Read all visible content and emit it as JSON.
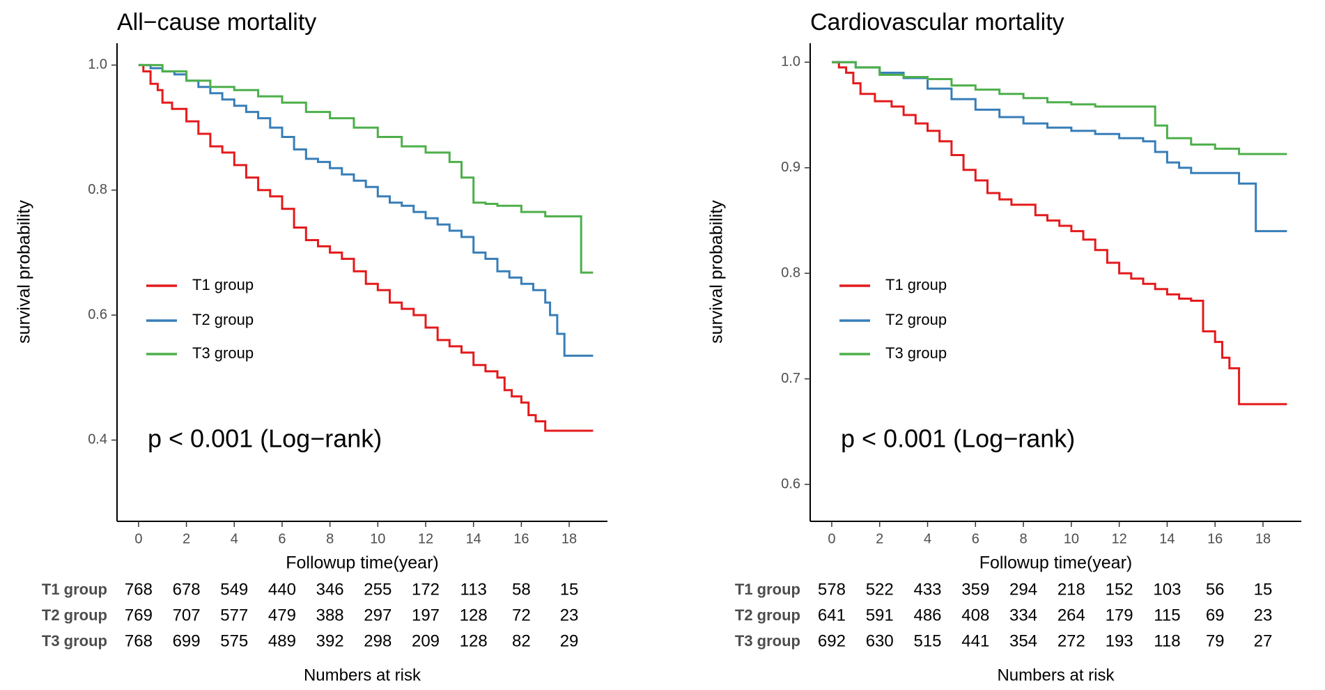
{
  "colors": {
    "T1": "#e41a1c",
    "T2": "#377eb8",
    "T3": "#4daf4a",
    "axis": "#000000",
    "tick_text": "#4d4d4d"
  },
  "legend_labels": [
    "T1 group",
    "T2 group",
    "T3 group"
  ],
  "chart_data": [
    {
      "type": "line",
      "step": true,
      "title": "All−cause mortality",
      "xlabel": "Followup time(year)",
      "ylabel": "survival probability",
      "xlim": [
        -0.9,
        19.6
      ],
      "ylim": [
        0.27,
        1.035
      ],
      "xticks": [
        0,
        2,
        4,
        6,
        8,
        10,
        12,
        14,
        16,
        18
      ],
      "yticks": [
        0.4,
        0.6,
        0.8,
        1.0
      ],
      "ytick_labels": [
        "0.4",
        "0.6",
        "0.8",
        "1.0"
      ],
      "annotation": "p < 0.001 (Log−rank)",
      "legend": "left-middle",
      "series": [
        {
          "name": "T1 group",
          "color": "#e41a1c",
          "x": [
            0,
            0.2,
            0.5,
            0.8,
            1.0,
            1.4,
            2.0,
            2.5,
            3.0,
            3.5,
            4.0,
            4.5,
            5.0,
            5.5,
            6.0,
            6.5,
            7.0,
            7.5,
            8.0,
            8.5,
            9.0,
            9.5,
            10.0,
            10.5,
            11.0,
            11.5,
            12.0,
            12.5,
            13.0,
            13.5,
            14.0,
            14.5,
            15.0,
            15.3,
            15.6,
            16.0,
            16.3,
            16.6,
            17.0,
            19.0
          ],
          "y": [
            1.0,
            0.99,
            0.97,
            0.96,
            0.94,
            0.93,
            0.91,
            0.89,
            0.87,
            0.86,
            0.84,
            0.82,
            0.8,
            0.79,
            0.77,
            0.74,
            0.72,
            0.71,
            0.7,
            0.69,
            0.67,
            0.65,
            0.64,
            0.62,
            0.61,
            0.6,
            0.58,
            0.56,
            0.55,
            0.54,
            0.52,
            0.51,
            0.5,
            0.48,
            0.47,
            0.46,
            0.44,
            0.43,
            0.415,
            0.415
          ]
        },
        {
          "name": "T2 group",
          "color": "#377eb8",
          "x": [
            0,
            0.5,
            1.0,
            1.5,
            2.0,
            2.5,
            3.0,
            3.5,
            4.0,
            4.5,
            5.0,
            5.5,
            6.0,
            6.5,
            7.0,
            7.5,
            8.0,
            8.5,
            9.0,
            9.5,
            10.0,
            10.5,
            11.0,
            11.5,
            12.0,
            12.5,
            13.0,
            13.5,
            14.0,
            14.5,
            15.0,
            15.5,
            16.0,
            16.5,
            17.0,
            17.2,
            17.5,
            17.8,
            19.0
          ],
          "y": [
            1.0,
            0.995,
            0.99,
            0.985,
            0.975,
            0.965,
            0.955,
            0.945,
            0.935,
            0.925,
            0.915,
            0.9,
            0.885,
            0.865,
            0.85,
            0.845,
            0.835,
            0.825,
            0.815,
            0.805,
            0.79,
            0.78,
            0.775,
            0.765,
            0.755,
            0.745,
            0.735,
            0.725,
            0.7,
            0.69,
            0.67,
            0.66,
            0.65,
            0.64,
            0.62,
            0.6,
            0.57,
            0.535,
            0.535
          ]
        },
        {
          "name": "T3 group",
          "color": "#4daf4a",
          "x": [
            0,
            1.0,
            2.0,
            3.0,
            4.0,
            5.0,
            6.0,
            7.0,
            8.0,
            9.0,
            10.0,
            11.0,
            12.0,
            13.0,
            13.5,
            14.0,
            14.5,
            15.0,
            16.0,
            17.0,
            18.5,
            19.0
          ],
          "y": [
            1.0,
            0.99,
            0.975,
            0.965,
            0.96,
            0.95,
            0.94,
            0.925,
            0.915,
            0.9,
            0.885,
            0.87,
            0.86,
            0.845,
            0.82,
            0.78,
            0.778,
            0.775,
            0.765,
            0.758,
            0.668,
            0.668
          ]
        }
      ],
      "risk_table": {
        "caption": "Numbers at risk",
        "times": [
          0,
          2,
          4,
          6,
          8,
          10,
          12,
          14,
          16,
          18
        ],
        "rows": [
          {
            "group": "T1 group",
            "values": [
              "768",
              "678",
              "549",
              "440",
              "346",
              "255",
              "172",
              "113",
              "58",
              "15"
            ]
          },
          {
            "group": "T2 group",
            "values": [
              "769",
              "707",
              "577",
              "479",
              "388",
              "297",
              "197",
              "128",
              "72",
              "23"
            ]
          },
          {
            "group": "T3 group",
            "values": [
              "768",
              "699",
              "575",
              "489",
              "392",
              "298",
              "209",
              "128",
              "82",
              "29"
            ]
          }
        ]
      }
    },
    {
      "type": "line",
      "step": true,
      "title": "Cardiovascular mortality",
      "xlabel": "Followup time(year)",
      "ylabel": "survival probability",
      "xlim": [
        -0.9,
        19.6
      ],
      "ylim": [
        0.565,
        1.018
      ],
      "xticks": [
        0,
        2,
        4,
        6,
        8,
        10,
        12,
        14,
        16,
        18
      ],
      "yticks": [
        0.6,
        0.7,
        0.8,
        0.9,
        1.0
      ],
      "ytick_labels": [
        "0.6",
        "0.7",
        "0.8",
        "0.9",
        "1.0"
      ],
      "annotation": "p < 0.001 (Log−rank)",
      "legend": "left-middle",
      "series": [
        {
          "name": "T1 group",
          "color": "#e41a1c",
          "x": [
            0,
            0.3,
            0.6,
            0.9,
            1.2,
            1.8,
            2.5,
            3.0,
            3.5,
            4.0,
            4.5,
            5.0,
            5.5,
            6.0,
            6.5,
            7.0,
            7.5,
            8.5,
            9.0,
            9.5,
            10.0,
            10.5,
            11.0,
            11.5,
            12.0,
            12.5,
            13.0,
            13.5,
            14.0,
            14.5,
            15.0,
            15.5,
            16.0,
            16.3,
            16.6,
            17.0,
            19.0
          ],
          "y": [
            1.0,
            0.995,
            0.99,
            0.98,
            0.97,
            0.963,
            0.958,
            0.95,
            0.942,
            0.935,
            0.925,
            0.912,
            0.898,
            0.888,
            0.876,
            0.87,
            0.865,
            0.855,
            0.85,
            0.845,
            0.84,
            0.832,
            0.822,
            0.81,
            0.8,
            0.795,
            0.79,
            0.785,
            0.78,
            0.776,
            0.774,
            0.745,
            0.735,
            0.72,
            0.71,
            0.676,
            0.676
          ]
        },
        {
          "name": "T2 group",
          "color": "#377eb8",
          "x": [
            0,
            1.0,
            2.0,
            3.0,
            4.0,
            5.0,
            6.0,
            7.0,
            8.0,
            9.0,
            10.0,
            11.0,
            12.0,
            13.0,
            13.5,
            14.0,
            14.5,
            15.0,
            16.0,
            17.0,
            17.7,
            19.0
          ],
          "y": [
            1.0,
            0.995,
            0.99,
            0.985,
            0.975,
            0.965,
            0.955,
            0.948,
            0.942,
            0.938,
            0.935,
            0.932,
            0.928,
            0.925,
            0.915,
            0.905,
            0.9,
            0.895,
            0.895,
            0.885,
            0.84,
            0.84
          ]
        },
        {
          "name": "T3 group",
          "color": "#4daf4a",
          "x": [
            0,
            1.0,
            2.0,
            3.0,
            4.0,
            5.0,
            6.0,
            7.0,
            8.0,
            9.0,
            10.0,
            11.0,
            12.0,
            13.0,
            13.5,
            14.0,
            15.0,
            16.0,
            17.0,
            19.0
          ],
          "y": [
            1.0,
            0.995,
            0.988,
            0.986,
            0.984,
            0.978,
            0.974,
            0.97,
            0.966,
            0.962,
            0.96,
            0.958,
            0.958,
            0.958,
            0.94,
            0.928,
            0.922,
            0.918,
            0.913,
            0.913
          ]
        }
      ],
      "risk_table": {
        "caption": "Numbers at risk",
        "times": [
          0,
          2,
          4,
          6,
          8,
          10,
          12,
          14,
          16,
          18
        ],
        "rows": [
          {
            "group": "T1 group",
            "values": [
              "578",
              "522",
              "433",
              "359",
              "294",
              "218",
              "152",
              "103",
              "56",
              "15"
            ]
          },
          {
            "group": "T2 group",
            "values": [
              "641",
              "591",
              "486",
              "408",
              "334",
              "264",
              "179",
              "115",
              "69",
              "23"
            ]
          },
          {
            "group": "T3 group",
            "values": [
              "692",
              "630",
              "515",
              "441",
              "354",
              "272",
              "193",
              "118",
              "79",
              "27"
            ]
          }
        ]
      }
    }
  ]
}
